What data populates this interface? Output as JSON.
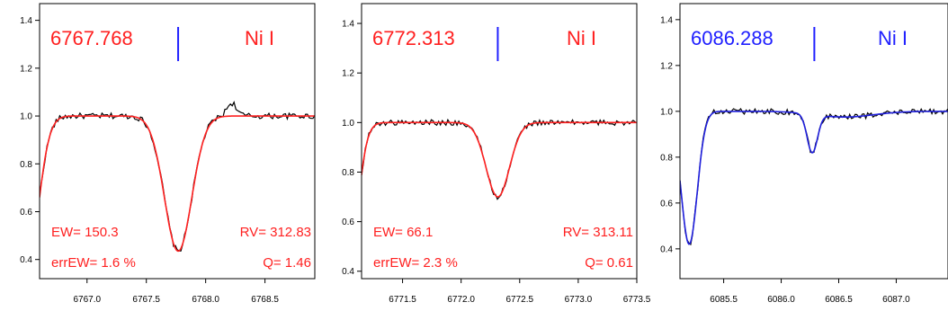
{
  "chart_data": [
    {
      "type": "line",
      "title": "6767.768",
      "species": "Ni I",
      "title_color": "#ff2020",
      "fit_color": "#ff2020",
      "stats_color": "#ff2020",
      "line_marker": 6767.768,
      "xlim": [
        6766.6,
        6768.92
      ],
      "ylim": [
        0.32,
        1.47
      ],
      "xticks": [
        6767.0,
        6767.5,
        6768.0,
        6768.5
      ],
      "xtick_labels": [
        "6767.0",
        "6767.5",
        "6768.0",
        "6768.5"
      ],
      "yticks": [
        0.4,
        0.6,
        0.8,
        1.0,
        1.2,
        1.4
      ],
      "ytick_labels": [
        "0.4",
        "0.6",
        "0.8",
        "1.0",
        "1.2",
        "1.4"
      ],
      "ew": "EW= 150.3",
      "rv": "RV= 312.83",
      "err_ew": "errEW= 1.6 %",
      "q": "Q= 1.46",
      "fit_lines": [
        {
          "center": 6767.768,
          "depth": 0.565,
          "sigma": 0.115
        },
        {
          "center": 6766.48,
          "depth": 0.7,
          "sigma": 0.1
        }
      ],
      "noise": 0.012,
      "bumps": [
        {
          "x": 6768.22,
          "h": 0.055,
          "w": 0.04
        }
      ]
    },
    {
      "type": "line",
      "title": "6772.313",
      "species": "Ni I",
      "title_color": "#ff2020",
      "fit_color": "#ff2020",
      "stats_color": "#ff2020",
      "line_marker": 6772.313,
      "xlim": [
        6771.15,
        6773.5
      ],
      "ylim": [
        0.37,
        1.48
      ],
      "xticks": [
        6771.5,
        6772.0,
        6772.5,
        6773.0,
        6773.5
      ],
      "xtick_labels": [
        "6771.5",
        "6772.0",
        "6772.5",
        "6773.0",
        "6773.5"
      ],
      "yticks": [
        0.4,
        0.6,
        0.8,
        1.0,
        1.2,
        1.4
      ],
      "ytick_labels": [
        "0.4",
        "0.6",
        "0.8",
        "1.0",
        "1.2",
        "1.4"
      ],
      "ew": "EW= 66.1",
      "rv": "RV= 313.11",
      "err_ew": "errEW= 2.3 %",
      "q": "Q= 0.61",
      "fit_lines": [
        {
          "center": 6772.313,
          "depth": 0.3,
          "sigma": 0.1
        },
        {
          "center": 6771.0,
          "depth": 0.85,
          "sigma": 0.09
        }
      ],
      "noise": 0.011,
      "bumps": []
    },
    {
      "type": "line",
      "title": "6086.288",
      "species": "Ni I",
      "title_color": "#2020ff",
      "fit_color": "#2020dd",
      "stats_color": "#2020ff",
      "line_marker": 6086.288,
      "xlim": [
        6085.12,
        6087.45
      ],
      "ylim": [
        0.27,
        1.47
      ],
      "xticks": [
        6085.5,
        6086.0,
        6086.5,
        6087.0
      ],
      "xtick_labels": [
        "6085.5",
        "6086.0",
        "6086.5",
        "6087.0"
      ],
      "yticks": [
        0.4,
        0.6,
        0.8,
        1.0,
        1.2,
        1.4
      ],
      "ytick_labels": [
        "0.4",
        "0.6",
        "0.8",
        "1.0",
        "1.2",
        "1.4"
      ],
      "ew": "",
      "rv": "",
      "err_ew": "",
      "q": "",
      "fit_lines": [
        {
          "center": 6085.2,
          "depth": 0.58,
          "sigma": 0.07
        },
        {
          "center": 6086.27,
          "depth": 0.17,
          "sigma": 0.045
        },
        {
          "center": 6086.55,
          "depth": 0.025,
          "sigma": 0.25
        }
      ],
      "noise": 0.012,
      "bumps": []
    }
  ]
}
